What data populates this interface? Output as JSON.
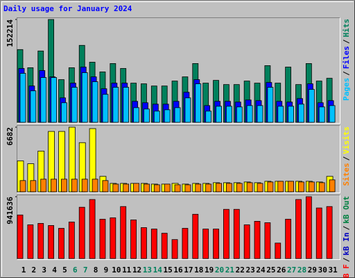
{
  "chart_data": [
    {
      "type": "bar",
      "title": "Daily usage for January 2024",
      "separator": "/",
      "ylim": [
        0,
        152214
      ],
      "yticks": [
        152214
      ],
      "series": [
        {
          "name": "Pages",
          "color": "#00C0FF",
          "values": [
            72500,
            46600,
            66300,
            66300,
            29000,
            51800,
            73500,
            60100,
            41400,
            51800,
            51800,
            21700,
            19700,
            16600,
            18600,
            21700,
            36200,
            57000,
            16600,
            23800,
            23800,
            22800,
            24800,
            24800,
            51800,
            23800,
            23800,
            26900,
            48700,
            22800,
            24800
          ]
        },
        {
          "name": "Files",
          "color": "#0000FF",
          "values": [
            79700,
            53800,
            76600,
            67300,
            36200,
            58000,
            81800,
            67300,
            49700,
            58000,
            58000,
            31100,
            29000,
            26900,
            26900,
            31100,
            44500,
            63200,
            24800,
            31100,
            31100,
            30000,
            33100,
            32100,
            59000,
            31100,
            30000,
            35200,
            57000,
            29000,
            32100
          ]
        },
        {
          "name": "Hits",
          "color": "#00805C",
          "values": [
            107700,
            80800,
            105600,
            152214,
            63200,
            80800,
            113900,
            89000,
            74600,
            87000,
            79700,
            58000,
            57000,
            53800,
            53800,
            61100,
            67300,
            87000,
            58000,
            62100,
            55900,
            55900,
            61100,
            58000,
            83900,
            58000,
            81800,
            55900,
            87000,
            61100,
            65200
          ]
        }
      ]
    },
    {
      "type": "bar",
      "separator": "/",
      "ylim": [
        0,
        6682
      ],
      "yticks": [
        6682
      ],
      "series": [
        {
          "name": "Sites",
          "color": "#FF8000",
          "values": [
            1162,
            1162,
            1307,
            1307,
            1307,
            1307,
            1307,
            1307,
            1162,
            799,
            799,
            872,
            799,
            726,
            799,
            726,
            726,
            799,
            799,
            872,
            872,
            872,
            944,
            872,
            1017,
            1089,
            1089,
            1017,
            1017,
            944,
            1235
          ]
        },
        {
          "name": "Visits",
          "color": "#FFFF00",
          "values": [
            3196,
            2905,
            4213,
            6246,
            6246,
            6682,
            5084,
            6537,
            1598,
            872,
            872,
            872,
            872,
            799,
            799,
            872,
            799,
            872,
            872,
            944,
            944,
            944,
            1017,
            944,
            1089,
            1089,
            1089,
            1089,
            1089,
            1017,
            1598
          ]
        }
      ]
    },
    {
      "type": "bar",
      "separator": "/",
      "ylim": [
        0,
        941636
      ],
      "yticks": [
        941636
      ],
      "categories": [
        "1",
        "2",
        "3",
        "4",
        "5",
        "6",
        "7",
        "8",
        "9",
        "10",
        "11",
        "12",
        "13",
        "14",
        "15",
        "16",
        "17",
        "18",
        "19",
        "20",
        "21",
        "22",
        "23",
        "24",
        "25",
        "26",
        "27",
        "28",
        "29",
        "30",
        "31"
      ],
      "category_colors": [
        "#000000",
        "#000000",
        "#000000",
        "#000000",
        "#000000",
        "#00805C",
        "#00805C",
        "#000000",
        "#000000",
        "#000000",
        "#000000",
        "#000000",
        "#00805C",
        "#00805C",
        "#000000",
        "#000000",
        "#000000",
        "#000000",
        "#000000",
        "#00805C",
        "#00805C",
        "#000000",
        "#000000",
        "#000000",
        "#000000",
        "#000000",
        "#00805C",
        "#00805C",
        "#000000",
        "#000000",
        "#000000"
      ],
      "series": [
        {
          "name": "kB F",
          "color": "#FF0000",
          "values": [
            663400,
            513600,
            535000,
            503000,
            460100,
            556400,
            781100,
            898800,
            599200,
            620600,
            791800,
            588500,
            470800,
            449400,
            385200,
            288900,
            460100,
            674100,
            449400,
            449400,
            749000,
            749000,
            513600,
            567100,
            545700,
            235400,
            599200,
            898800,
            941636,
            770400,
            791800
          ]
        }
      ],
      "legend_extra": [
        {
          "name": "kB In",
          "color": "#0000C0"
        },
        {
          "name": "kB Out",
          "color": "#008040"
        }
      ]
    }
  ]
}
